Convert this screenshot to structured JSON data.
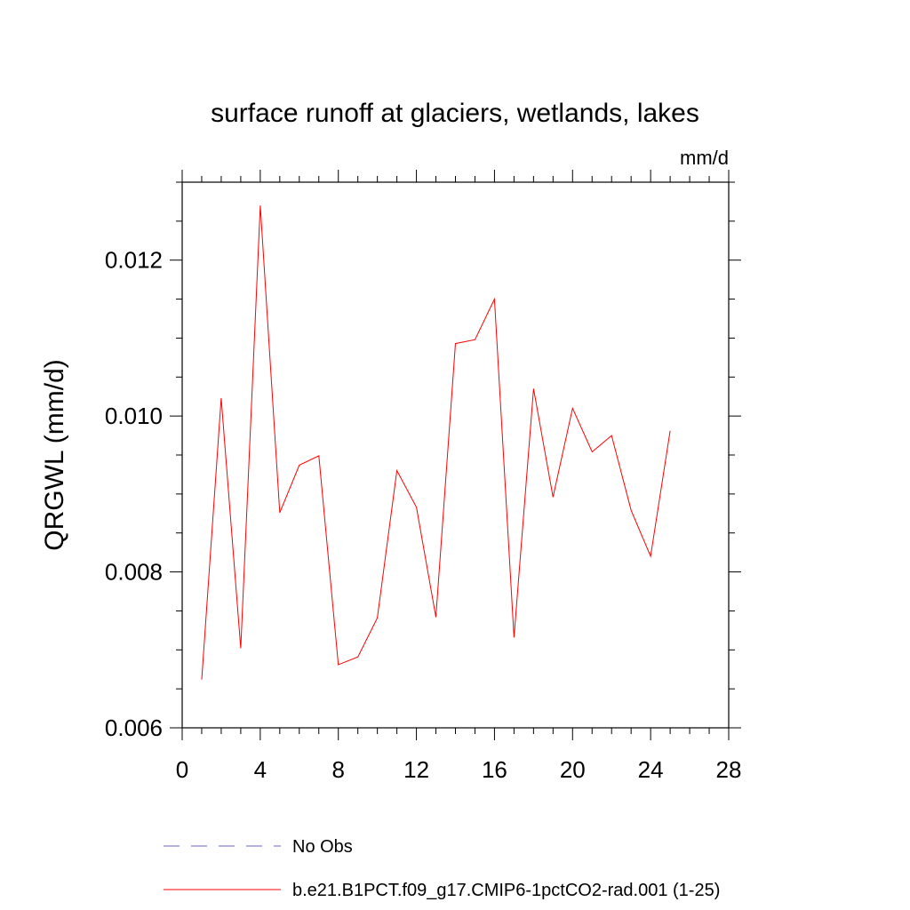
{
  "chart_data": {
    "type": "line",
    "title": "surface runoff at glaciers, wetlands, lakes",
    "units_label": "mm/d",
    "ylabel": "QRGWL  (mm/d)",
    "xlabel": "",
    "xlim": [
      0,
      28
    ],
    "ylim": [
      0.006,
      0.013
    ],
    "x_ticks": [
      0,
      4,
      8,
      12,
      16,
      20,
      24,
      28
    ],
    "x_tick_labels": [
      "0",
      "4",
      "8",
      "12",
      "16",
      "20",
      "24",
      "28"
    ],
    "y_ticks": [
      0.006,
      0.008,
      0.01,
      0.012
    ],
    "y_tick_labels": [
      "0.006",
      "0.008",
      "0.010",
      "0.012"
    ],
    "x_minor_step": 1,
    "y_minor_step": 0.0005,
    "grid": false,
    "legend_position": "bottom",
    "series": [
      {
        "name": "b.e21.B1PCT.f09_g17.CMIP6-1pctCO2-rad.001 (1-25)",
        "color": "#ff0000",
        "dash": "solid",
        "x": [
          1,
          2,
          3,
          4,
          5,
          6,
          7,
          8,
          9,
          10,
          11,
          12,
          13,
          14,
          15,
          16,
          17,
          18,
          19,
          20,
          21,
          22,
          23,
          24,
          25
        ],
        "values": [
          0.00662,
          0.01023,
          0.00702,
          0.0127,
          0.00876,
          0.00937,
          0.00949,
          0.00681,
          0.00691,
          0.00741,
          0.0093,
          0.00883,
          0.00742,
          0.01093,
          0.01098,
          0.0115,
          0.00716,
          0.01035,
          0.00896,
          0.0101,
          0.00954,
          0.00975,
          0.00879,
          0.0082,
          0.00981
        ]
      }
    ],
    "legend": [
      {
        "label": "No Obs",
        "color": "#6666cc",
        "dash": "dashed"
      },
      {
        "label": "b.e21.B1PCT.f09_g17.CMIP6-1pctCO2-rad.001 (1-25)",
        "color": "#ff0000",
        "dash": "solid"
      }
    ]
  }
}
